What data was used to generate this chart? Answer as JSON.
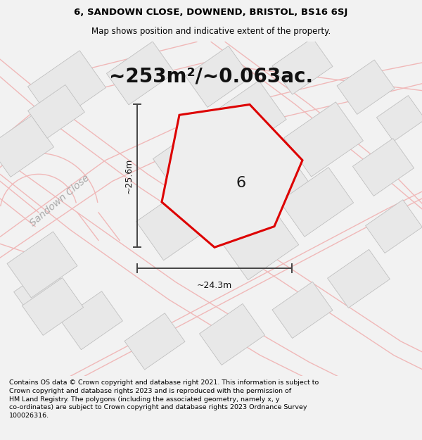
{
  "title_line1": "6, SANDOWN CLOSE, DOWNEND, BRISTOL, BS16 6SJ",
  "title_line2": "Map shows position and indicative extent of the property.",
  "area_label": "~253m²/~0.063ac.",
  "dimension_v": "~25.6m",
  "dimension_h": "~24.3m",
  "plot_label": "6",
  "street_label": "Sandown Close",
  "footer_text": "Contains OS data © Crown copyright and database right 2021. This information is subject to Crown copyright and database rights 2023 and is reproduced with the permission of HM Land Registry. The polygons (including the associated geometry, namely x, y co-ordinates) are subject to Crown copyright and database rights 2023 Ordnance Survey 100026316.",
  "bg_color": "#f2f2f2",
  "map_bg_color": "#ffffff",
  "building_fill": "#e8e8e8",
  "building_edge": "#c0c0c0",
  "road_fill": "#ffffff",
  "road_edge": "#e0c0c0",
  "plot_fill": "#eeeeee",
  "plot_edge": "#dd0000",
  "dim_line_color": "#444444",
  "street_label_color": "#aaaaaa",
  "title_fontsize": 9.5,
  "subtitle_fontsize": 8.5,
  "area_fontsize": 20,
  "plot_label_fontsize": 16,
  "street_label_fontsize": 10,
  "footer_fontsize": 6.8,
  "dim_label_fontsize": 9
}
